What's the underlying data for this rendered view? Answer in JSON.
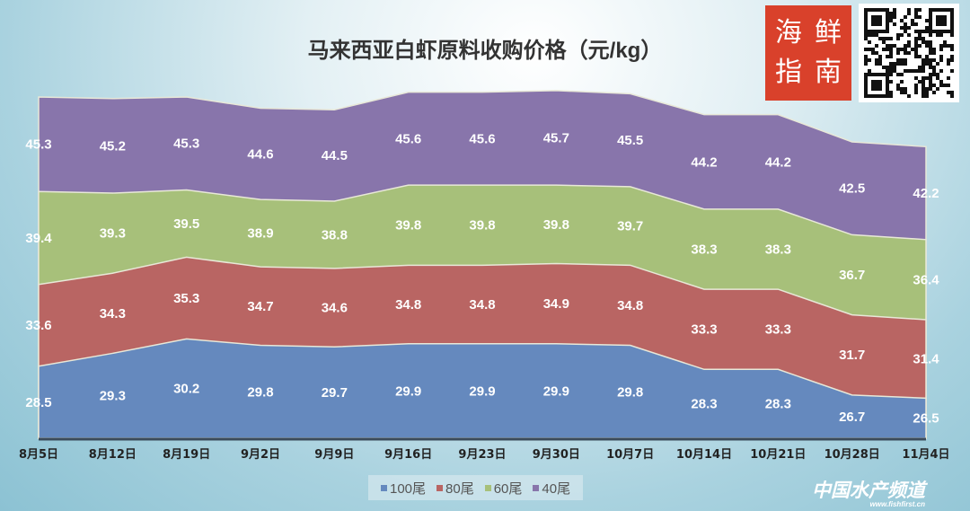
{
  "chart_data": {
    "type": "area",
    "title": "马来西亚白虾原料收购价格（元/kg）",
    "categories": [
      "8月5日",
      "8月12日",
      "8月19日",
      "9月2日",
      "9月9日",
      "9月16日",
      "9月23日",
      "9月30日",
      "10月7日",
      "10月14日",
      "10月21日",
      "10月28日",
      "11月4日"
    ],
    "series": [
      {
        "name": "100尾",
        "color": "#6589be",
        "values": [
          28.5,
          29.3,
          30.2,
          29.8,
          29.7,
          29.9,
          29.9,
          29.9,
          29.8,
          28.3,
          28.3,
          26.7,
          26.5
        ]
      },
      {
        "name": "80尾",
        "color": "#b96563",
        "values": [
          33.6,
          34.3,
          35.3,
          34.7,
          34.6,
          34.8,
          34.8,
          34.9,
          34.8,
          33.3,
          33.3,
          31.7,
          31.4
        ]
      },
      {
        "name": "60尾",
        "color": "#a7c07a",
        "values": [
          39.4,
          39.3,
          39.5,
          38.9,
          38.8,
          39.8,
          39.8,
          39.8,
          39.7,
          38.3,
          38.3,
          36.7,
          36.4
        ]
      },
      {
        "name": "40尾",
        "color": "#8875ab",
        "values": [
          45.3,
          45.2,
          45.3,
          44.6,
          44.5,
          45.6,
          45.6,
          45.7,
          45.5,
          44.2,
          44.2,
          42.5,
          42.2
        ]
      }
    ],
    "ylim": [
      24,
      47
    ],
    "xlabel": "",
    "ylabel": "",
    "legend": "bottom"
  },
  "logo": {
    "text": [
      "海",
      "鲜",
      "指",
      "南"
    ]
  },
  "watermark": {
    "text": "中国水产频道",
    "url": "www.fishfirst.cn"
  }
}
